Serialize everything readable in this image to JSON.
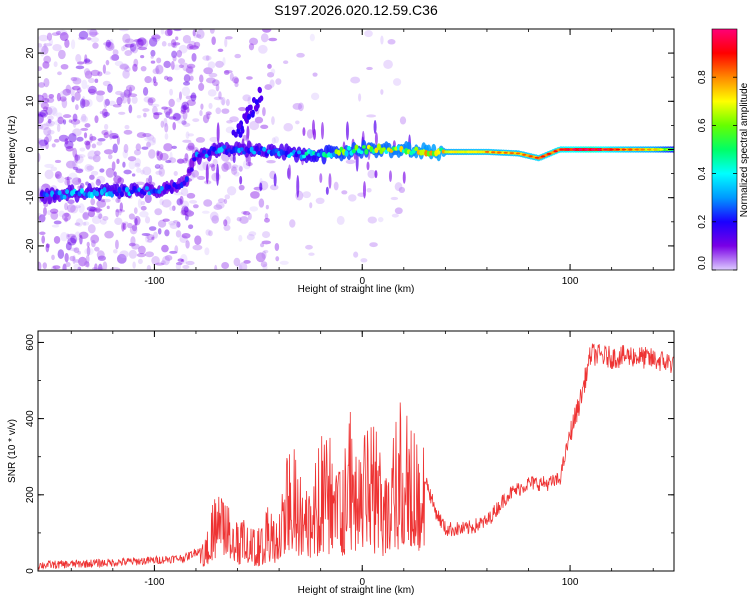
{
  "figure": {
    "title": "S197.2026.020.12.59.C36"
  },
  "chart_data": [
    {
      "type": "heatmap",
      "name": "spectrogram",
      "title": "S197.2026.020.12.59.C36",
      "xlabel": "Height of straight line (km)",
      "ylabel": "Frequency (Hz)",
      "xlim": [
        -156,
        150
      ],
      "ylim": [
        -25,
        25
      ],
      "xticks": [
        -100,
        0,
        100
      ],
      "xtick_labels": [
        "-100",
        "0",
        "100"
      ],
      "yticks": [
        -20,
        -10,
        0,
        10,
        20
      ],
      "ytick_labels": [
        "-20",
        "-10",
        "0",
        "10",
        "20"
      ],
      "colorbar": {
        "label": "Normalized spectral amplitude",
        "range": [
          0,
          1
        ],
        "ticks": [
          0.0,
          0.2,
          0.4,
          0.6,
          0.8
        ],
        "tick_labels": [
          "0.0",
          "0.2",
          "0.4",
          "0.6",
          "0.8"
        ],
        "colors": [
          "#ddccff",
          "#7a00e6",
          "#1a00ff",
          "#0099ff",
          "#00ffff",
          "#00ff66",
          "#66ff00",
          "#ffff00",
          "#ff8800",
          "#ff0000",
          "#ff0077"
        ]
      },
      "ridge": [
        {
          "x": -154,
          "freq": -9.5,
          "amp": 0.28
        },
        {
          "x": -140,
          "freq": -9.3,
          "amp": 0.3
        },
        {
          "x": -125,
          "freq": -8.8,
          "amp": 0.32
        },
        {
          "x": -110,
          "freq": -8.6,
          "amp": 0.3
        },
        {
          "x": -95,
          "freq": -8.5,
          "amp": 0.25
        },
        {
          "x": -85,
          "freq": -7.0,
          "amp": 0.18
        },
        {
          "x": -80,
          "freq": -1.5,
          "amp": 0.25
        },
        {
          "x": -70,
          "freq": 0.0,
          "amp": 0.3
        },
        {
          "x": -60,
          "freq": 0.0,
          "amp": 0.28
        },
        {
          "x": -45,
          "freq": -0.5,
          "amp": 0.3
        },
        {
          "x": -30,
          "freq": -1.0,
          "amp": 0.35
        },
        {
          "x": -20,
          "freq": -1.0,
          "amp": 0.45
        },
        {
          "x": -10,
          "freq": -0.5,
          "amp": 0.55
        },
        {
          "x": 0,
          "freq": 0.0,
          "amp": 0.55
        },
        {
          "x": 10,
          "freq": 0.0,
          "amp": 0.6
        },
        {
          "x": 25,
          "freq": -0.3,
          "amp": 0.65
        },
        {
          "x": 40,
          "freq": -0.5,
          "amp": 0.7
        },
        {
          "x": 60,
          "freq": -0.5,
          "amp": 0.75
        },
        {
          "x": 75,
          "freq": -0.8,
          "amp": 0.75
        },
        {
          "x": 85,
          "freq": -1.8,
          "amp": 0.8
        },
        {
          "x": 95,
          "freq": 0.0,
          "amp": 0.85
        },
        {
          "x": 110,
          "freq": 0.0,
          "amp": 0.95
        },
        {
          "x": 125,
          "freq": 0.0,
          "amp": 0.8
        },
        {
          "x": 140,
          "freq": 0.0,
          "amp": 0.7
        },
        {
          "x": 150,
          "freq": 0.0,
          "amp": 0.5
        }
      ]
    },
    {
      "type": "line",
      "name": "snr",
      "xlabel": "Height of straight line (km)",
      "ylabel": "SNR (10 * v/v)",
      "xlim": [
        -156,
        150
      ],
      "ylim": [
        0,
        630
      ],
      "xticks": [
        -100,
        0,
        100
      ],
      "xtick_labels": [
        "-100",
        "0",
        "100"
      ],
      "yticks": [
        0,
        200,
        400,
        600
      ],
      "ytick_labels": [
        "0",
        "200",
        "400",
        "600"
      ],
      "color": "#ee3333",
      "x": [
        -156,
        -140,
        -120,
        -100,
        -85,
        -77,
        -72,
        -68,
        -60,
        -50,
        -45,
        -40,
        -35,
        -30,
        -25,
        -20,
        -15,
        -10,
        -5,
        0,
        5,
        10,
        15,
        20,
        25,
        30,
        35,
        40,
        50,
        60,
        70,
        80,
        90,
        95,
        100,
        105,
        110,
        120,
        130,
        140,
        150
      ],
      "values": [
        15,
        18,
        22,
        28,
        35,
        60,
        130,
        180,
        110,
        80,
        160,
        110,
        260,
        230,
        220,
        270,
        300,
        200,
        330,
        300,
        310,
        250,
        330,
        350,
        300,
        250,
        160,
        110,
        110,
        130,
        200,
        230,
        230,
        240,
        360,
        450,
        570,
        560,
        565,
        555,
        545
      ]
    }
  ]
}
